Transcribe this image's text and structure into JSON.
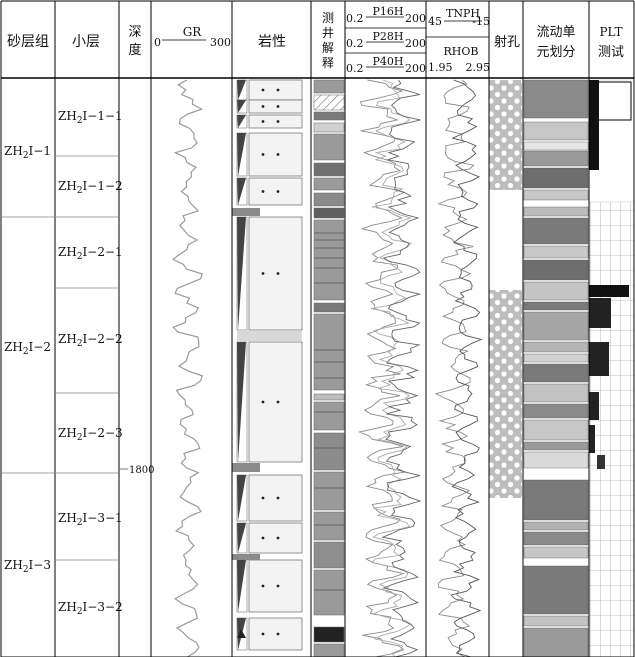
{
  "headers": {
    "sand_group": "砂层组",
    "sublayer": "小层",
    "depth_1": "深",
    "depth_2": "度",
    "gr": "GR",
    "gr_min": "0",
    "gr_max": "300",
    "lithology": "岩性",
    "interp_1": "测",
    "interp_2": "井",
    "interp_3": "解",
    "interp_4": "释",
    "res_1": "P16H",
    "res_2": "P28H",
    "res_3": "P40H",
    "res_min": "0.2",
    "res_max": "200",
    "tnph": "TNPH",
    "tnph_min": "45",
    "tnph_max": "-15",
    "rhob": "RHOB",
    "rhob_min": "1.95",
    "rhob_max": "2.95",
    "perf": "射孔",
    "flow_1": "流动单",
    "flow_2": "元划分",
    "plt_1": "PLT",
    "plt_2": "测试"
  },
  "sand_groups": [
    {
      "pre": "ZH",
      "sub": "2",
      "post": "Ⅰ−1"
    },
    {
      "pre": "ZH",
      "sub": "2",
      "post": "Ⅰ−2"
    },
    {
      "pre": "ZH",
      "sub": "2",
      "post": "Ⅰ−3"
    }
  ],
  "sublayers": [
    {
      "pre": "ZH",
      "sub": "2",
      "post": "Ⅰ−1−1"
    },
    {
      "pre": "ZH",
      "sub": "2",
      "post": "Ⅰ−1−2"
    },
    {
      "pre": "ZH",
      "sub": "2",
      "post": "Ⅰ−2−1"
    },
    {
      "pre": "ZH",
      "sub": "2",
      "post": "Ⅰ−2−2"
    },
    {
      "pre": "ZH",
      "sub": "2",
      "post": "Ⅰ−2−3"
    },
    {
      "pre": "ZH",
      "sub": "2",
      "post": "Ⅰ−3−1"
    },
    {
      "pre": "ZH",
      "sub": "2",
      "post": "Ⅰ−3−2"
    }
  ],
  "depth_label": "1800",
  "colors": {
    "frame": "#000000",
    "dark": "#303030",
    "mid": "#7a7a7a",
    "light": "#c8c8c8",
    "pale": "#ececec",
    "curve": "#9a9a9a"
  }
}
